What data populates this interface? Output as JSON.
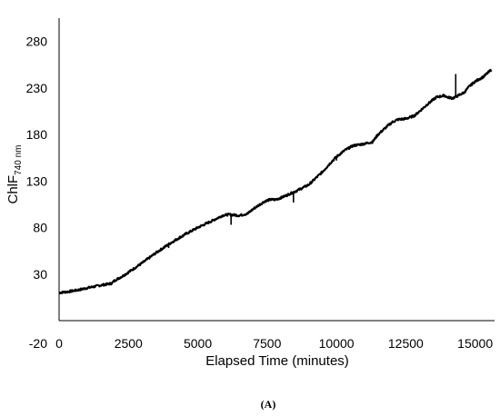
{
  "chart_data": {
    "type": "line",
    "xlabel": "Elapsed Time (minutes)",
    "ylabel": {
      "main": "ChlF",
      "subscript": "740 nm"
    },
    "panel_label": "(A)",
    "xlim": [
      0,
      15700
    ],
    "ylim": [
      -20,
      305
    ],
    "x_ticks": [
      "0",
      "2500",
      "5000",
      "7500",
      "10000",
      "12500",
      "15000"
    ],
    "x_tick_values": [
      0,
      2500,
      5000,
      7500,
      10000,
      12500,
      15000
    ],
    "y_ticks": [
      "-20",
      "30",
      "80",
      "130",
      "180",
      "230",
      "280"
    ],
    "y_tick_values": [
      -20,
      30,
      80,
      130,
      180,
      230,
      280
    ],
    "grid": false,
    "line_color": "#000000",
    "series": [
      {
        "x": [
          0,
          300,
          700,
          1000,
          1500,
          1900,
          2000,
          2300,
          2500,
          3000,
          3500,
          4000,
          4500,
          5000,
          5500,
          5900,
          6100,
          6500,
          6800,
          7000,
          7200,
          7400,
          7600,
          7800,
          8000,
          8300,
          8600,
          9000,
          9500,
          9800,
          10000,
          10300,
          10600,
          11000,
          11300,
          11500,
          11800,
          12000,
          12200,
          12500,
          12800,
          13000,
          13300,
          13600,
          13900,
          14000,
          14200,
          14400,
          14600,
          14800,
          15000,
          15300,
          15600
        ],
        "y": [
          10,
          11,
          13,
          15,
          18,
          20,
          23,
          28,
          32,
          42,
          53,
          63,
          72,
          80,
          87,
          93,
          94,
          93,
          95,
          100,
          104,
          108,
          110,
          110,
          112,
          116,
          120,
          126,
          140,
          150,
          156,
          163,
          168,
          170,
          172,
          180,
          188,
          193,
          196,
          197,
          200,
          205,
          213,
          220,
          222,
          220,
          219,
          222,
          225,
          232,
          237,
          242,
          250
        ]
      }
    ],
    "spikes": [
      {
        "x": 3950,
        "y": 58
      },
      {
        "x": 4450,
        "y": 69
      },
      {
        "x": 6200,
        "y": 83
      },
      {
        "x": 8450,
        "y": 107
      },
      {
        "x": 10000,
        "y": 152
      },
      {
        "x": 14300,
        "y": 245
      }
    ]
  }
}
